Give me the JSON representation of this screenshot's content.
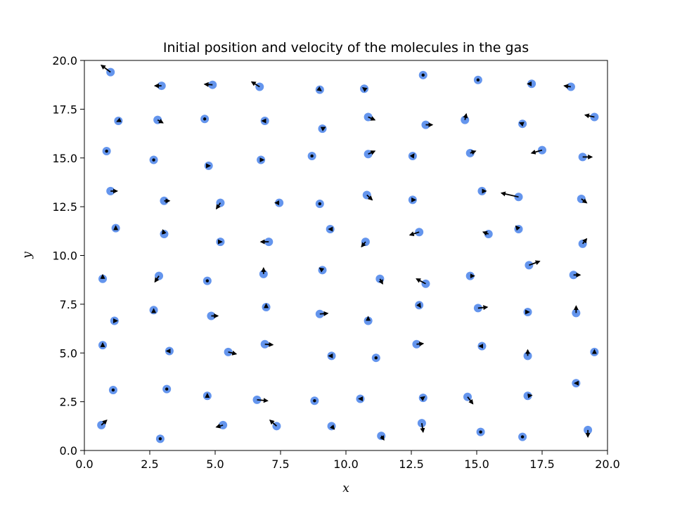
{
  "chart_data": {
    "type": "scatter",
    "title": "Initial position and velocity of the molecules in the gas",
    "xlabel": "x",
    "ylabel": "y",
    "xlim": [
      0,
      20
    ],
    "ylim": [
      0,
      20
    ],
    "xticks": [
      "0.0",
      "2.5",
      "5.0",
      "7.5",
      "10.0",
      "12.5",
      "15.0",
      "17.5",
      "20.0"
    ],
    "yticks": [
      "0.0",
      "2.5",
      "5.0",
      "7.5",
      "10.0",
      "12.5",
      "15.0",
      "17.5",
      "20.0"
    ],
    "grid": false,
    "marker_color": "#6495ed",
    "arrow_color": "#000000",
    "points": [
      {
        "x": 1.0,
        "y": 19.4,
        "vx": -0.35,
        "vy": 0.35
      },
      {
        "x": 2.95,
        "y": 18.7,
        "vx": -0.25,
        "vy": 0.0
      },
      {
        "x": 4.9,
        "y": 18.75,
        "vx": -0.3,
        "vy": 0.03
      },
      {
        "x": 6.7,
        "y": 18.65,
        "vx": -0.3,
        "vy": 0.25
      },
      {
        "x": 9.0,
        "y": 18.5,
        "vx": 0.05,
        "vy": -0.05
      },
      {
        "x": 10.7,
        "y": 18.55,
        "vx": -0.05,
        "vy": 0.05
      },
      {
        "x": 12.95,
        "y": 19.25,
        "vx": 0.0,
        "vy": 0.0
      },
      {
        "x": 15.05,
        "y": 19.0,
        "vx": 0.0,
        "vy": 0.0
      },
      {
        "x": 17.1,
        "y": 18.8,
        "vx": -0.15,
        "vy": 0.0
      },
      {
        "x": 18.6,
        "y": 18.65,
        "vx": -0.25,
        "vy": 0.05
      },
      {
        "x": 1.3,
        "y": 16.9,
        "vx": -0.05,
        "vy": -0.03
      },
      {
        "x": 2.8,
        "y": 16.95,
        "vx": 0.2,
        "vy": -0.15
      },
      {
        "x": 4.6,
        "y": 17.0,
        "vx": 0.0,
        "vy": 0.0
      },
      {
        "x": 6.9,
        "y": 16.9,
        "vx": -0.1,
        "vy": 0.0
      },
      {
        "x": 9.1,
        "y": 16.5,
        "vx": 0.1,
        "vy": 0.07
      },
      {
        "x": 10.85,
        "y": 17.1,
        "vx": 0.25,
        "vy": -0.15
      },
      {
        "x": 13.05,
        "y": 16.7,
        "vx": 0.25,
        "vy": 0.0
      },
      {
        "x": 14.55,
        "y": 16.95,
        "vx": 0.05,
        "vy": 0.3
      },
      {
        "x": 16.75,
        "y": 16.75,
        "vx": -0.1,
        "vy": 0.05
      },
      {
        "x": 19.5,
        "y": 17.1,
        "vx": -0.35,
        "vy": 0.1
      },
      {
        "x": 0.85,
        "y": 15.35,
        "vx": 0.0,
        "vy": 0.0
      },
      {
        "x": 2.65,
        "y": 14.9,
        "vx": 0.0,
        "vy": 0.0
      },
      {
        "x": 4.75,
        "y": 14.6,
        "vx": 0.05,
        "vy": 0.0
      },
      {
        "x": 6.75,
        "y": 14.9,
        "vx": 0.1,
        "vy": 0.0
      },
      {
        "x": 8.7,
        "y": 15.1,
        "vx": 0.0,
        "vy": 0.0
      },
      {
        "x": 10.85,
        "y": 15.2,
        "vx": 0.25,
        "vy": 0.15
      },
      {
        "x": 12.55,
        "y": 15.1,
        "vx": 0.05,
        "vy": 0.1
      },
      {
        "x": 14.75,
        "y": 15.25,
        "vx": 0.2,
        "vy": 0.1
      },
      {
        "x": 17.5,
        "y": 15.4,
        "vx": -0.4,
        "vy": -0.15
      },
      {
        "x": 19.05,
        "y": 15.05,
        "vx": 0.35,
        "vy": 0.0
      },
      {
        "x": 1.0,
        "y": 13.3,
        "vx": 0.25,
        "vy": 0.0
      },
      {
        "x": 3.05,
        "y": 12.8,
        "vx": 0.2,
        "vy": 0.0
      },
      {
        "x": 5.2,
        "y": 12.7,
        "vx": -0.15,
        "vy": -0.3
      },
      {
        "x": 7.45,
        "y": 12.7,
        "vx": -0.15,
        "vy": 0.0
      },
      {
        "x": 9.0,
        "y": 12.65,
        "vx": 0.0,
        "vy": 0.0
      },
      {
        "x": 10.8,
        "y": 13.1,
        "vx": 0.2,
        "vy": -0.25
      },
      {
        "x": 12.55,
        "y": 12.85,
        "vx": 0.1,
        "vy": 0.0
      },
      {
        "x": 15.2,
        "y": 13.3,
        "vx": 0.15,
        "vy": 0.0
      },
      {
        "x": 16.6,
        "y": 13.0,
        "vx": -0.65,
        "vy": 0.2
      },
      {
        "x": 19.0,
        "y": 12.9,
        "vx": 0.2,
        "vy": -0.2
      },
      {
        "x": 1.2,
        "y": 11.4,
        "vx": 0.0,
        "vy": 0.1
      },
      {
        "x": 3.05,
        "y": 11.1,
        "vx": -0.05,
        "vy": 0.2
      },
      {
        "x": 5.2,
        "y": 10.7,
        "vx": 0.05,
        "vy": 0.0
      },
      {
        "x": 7.05,
        "y": 10.7,
        "vx": -0.3,
        "vy": 0.0
      },
      {
        "x": 9.4,
        "y": 11.35,
        "vx": -0.05,
        "vy": 0.0
      },
      {
        "x": 10.75,
        "y": 10.7,
        "vx": -0.15,
        "vy": -0.25
      },
      {
        "x": 12.8,
        "y": 11.2,
        "vx": -0.35,
        "vy": -0.15
      },
      {
        "x": 15.45,
        "y": 11.1,
        "vx": -0.2,
        "vy": 0.1
      },
      {
        "x": 16.6,
        "y": 11.35,
        "vx": -0.1,
        "vy": 0.15
      },
      {
        "x": 19.05,
        "y": 10.6,
        "vx": 0.15,
        "vy": 0.25
      },
      {
        "x": 0.7,
        "y": 8.8,
        "vx": 0.0,
        "vy": 0.2
      },
      {
        "x": 2.85,
        "y": 8.95,
        "vx": -0.15,
        "vy": -0.3
      },
      {
        "x": 4.7,
        "y": 8.7,
        "vx": 0.0,
        "vy": 0.0
      },
      {
        "x": 6.85,
        "y": 9.05,
        "vx": 0.0,
        "vy": 0.3
      },
      {
        "x": 9.1,
        "y": 9.25,
        "vx": -0.1,
        "vy": 0.1
      },
      {
        "x": 11.3,
        "y": 8.8,
        "vx": 0.1,
        "vy": -0.25
      },
      {
        "x": 13.05,
        "y": 8.55,
        "vx": -0.35,
        "vy": 0.25
      },
      {
        "x": 14.75,
        "y": 8.95,
        "vx": 0.15,
        "vy": 0.0
      },
      {
        "x": 17.0,
        "y": 9.5,
        "vx": 0.4,
        "vy": 0.2
      },
      {
        "x": 18.7,
        "y": 9.0,
        "vx": 0.25,
        "vy": 0.0
      },
      {
        "x": 2.65,
        "y": 7.2,
        "vx": 0.0,
        "vy": 0.05
      },
      {
        "x": 4.85,
        "y": 6.9,
        "vx": 0.25,
        "vy": 0.0
      },
      {
        "x": 6.95,
        "y": 7.35,
        "vx": 0.0,
        "vy": 0.15
      },
      {
        "x": 9.0,
        "y": 7.0,
        "vx": 0.3,
        "vy": 0.03
      },
      {
        "x": 12.8,
        "y": 7.45,
        "vx": 0.05,
        "vy": -0.1
      },
      {
        "x": 15.05,
        "y": 7.3,
        "vx": 0.35,
        "vy": 0.05
      },
      {
        "x": 1.15,
        "y": 6.65,
        "vx": 0.1,
        "vy": 0.0
      },
      {
        "x": 10.85,
        "y": 6.65,
        "vx": 0.0,
        "vy": 0.2
      },
      {
        "x": 16.95,
        "y": 7.1,
        "vx": 0.05,
        "vy": 0.0
      },
      {
        "x": 18.8,
        "y": 7.05,
        "vx": 0.0,
        "vy": 0.35
      },
      {
        "x": 0.7,
        "y": 5.4,
        "vx": 0.0,
        "vy": 0.1
      },
      {
        "x": 3.25,
        "y": 5.1,
        "vx": -0.1,
        "vy": 0.0
      },
      {
        "x": 5.5,
        "y": 5.05,
        "vx": 0.3,
        "vy": -0.1
      },
      {
        "x": 6.9,
        "y": 5.45,
        "vx": 0.3,
        "vy": -0.03
      },
      {
        "x": 9.45,
        "y": 4.85,
        "vx": -0.1,
        "vy": 0.0
      },
      {
        "x": 11.15,
        "y": 4.75,
        "vx": 0.0,
        "vy": 0.0
      },
      {
        "x": 12.7,
        "y": 5.45,
        "vx": 0.25,
        "vy": 0.03
      },
      {
        "x": 15.2,
        "y": 5.35,
        "vx": -0.1,
        "vy": 0.0
      },
      {
        "x": 16.95,
        "y": 4.85,
        "vx": 0.0,
        "vy": 0.3
      },
      {
        "x": 19.5,
        "y": 5.05,
        "vx": 0.0,
        "vy": 0.1
      },
      {
        "x": 1.1,
        "y": 3.1,
        "vx": 0.0,
        "vy": 0.0
      },
      {
        "x": 3.15,
        "y": 3.15,
        "vx": 0.0,
        "vy": 0.0
      },
      {
        "x": 4.7,
        "y": 2.8,
        "vx": 0.0,
        "vy": 0.1
      },
      {
        "x": 6.6,
        "y": 2.6,
        "vx": 0.4,
        "vy": -0.05
      },
      {
        "x": 8.8,
        "y": 2.55,
        "vx": 0.0,
        "vy": 0.0
      },
      {
        "x": 10.55,
        "y": 2.65,
        "vx": -0.05,
        "vy": 0.0
      },
      {
        "x": 12.95,
        "y": 2.7,
        "vx": 0.05,
        "vy": 0.05
      },
      {
        "x": 14.65,
        "y": 2.75,
        "vx": 0.2,
        "vy": -0.35
      },
      {
        "x": 16.95,
        "y": 2.8,
        "vx": 0.15,
        "vy": 0.03
      },
      {
        "x": 18.8,
        "y": 3.45,
        "vx": -0.05,
        "vy": 0.0
      },
      {
        "x": 0.65,
        "y": 1.3,
        "vx": 0.2,
        "vy": 0.25
      },
      {
        "x": 2.9,
        "y": 0.6,
        "vx": 0.0,
        "vy": 0.0
      },
      {
        "x": 5.3,
        "y": 1.3,
        "vx": -0.25,
        "vy": -0.1
      },
      {
        "x": 7.35,
        "y": 1.25,
        "vx": -0.25,
        "vy": 0.3
      },
      {
        "x": 9.45,
        "y": 1.25,
        "vx": 0.1,
        "vy": -0.15
      },
      {
        "x": 11.35,
        "y": 0.75,
        "vx": 0.1,
        "vy": -0.2
      },
      {
        "x": 12.9,
        "y": 1.4,
        "vx": 0.05,
        "vy": -0.45
      },
      {
        "x": 15.15,
        "y": 0.95,
        "vx": 0.0,
        "vy": 0.0
      },
      {
        "x": 16.75,
        "y": 0.7,
        "vx": 0.0,
        "vy": 0.0
      },
      {
        "x": 19.25,
        "y": 1.05,
        "vx": 0.0,
        "vy": -0.35
      }
    ]
  }
}
